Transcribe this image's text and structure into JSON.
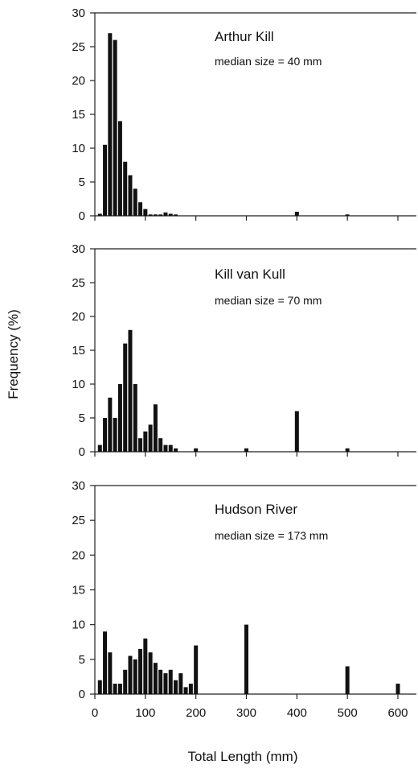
{
  "chart_data": [
    {
      "type": "bar",
      "title": "Arthur Kill",
      "annotation": "median size = 40 mm",
      "ylim": [
        0,
        30
      ],
      "xlim": [
        0,
        625
      ],
      "yticks": [
        0,
        5,
        10,
        15,
        20,
        25,
        30
      ],
      "xticks": [
        0,
        100,
        200,
        300,
        400,
        500,
        600
      ],
      "bars": [
        {
          "x": 10,
          "value": 0.3
        },
        {
          "x": 20,
          "value": 10.5
        },
        {
          "x": 30,
          "value": 27
        },
        {
          "x": 40,
          "value": 26
        },
        {
          "x": 50,
          "value": 14
        },
        {
          "x": 60,
          "value": 8
        },
        {
          "x": 70,
          "value": 6
        },
        {
          "x": 80,
          "value": 4
        },
        {
          "x": 90,
          "value": 2
        },
        {
          "x": 100,
          "value": 1
        },
        {
          "x": 110,
          "value": 0.2
        },
        {
          "x": 120,
          "value": 0.2
        },
        {
          "x": 130,
          "value": 0.2
        },
        {
          "x": 140,
          "value": 0.5
        },
        {
          "x": 150,
          "value": 0.3
        },
        {
          "x": 160,
          "value": 0.2
        },
        {
          "x": 400,
          "value": 0.6
        },
        {
          "x": 500,
          "value": 0.2
        }
      ]
    },
    {
      "type": "bar",
      "title": "Kill van Kull",
      "annotation": "median size = 70 mm",
      "ylim": [
        0,
        30
      ],
      "xlim": [
        0,
        625
      ],
      "yticks": [
        0,
        5,
        10,
        15,
        20,
        25,
        30
      ],
      "xticks": [
        0,
        100,
        200,
        300,
        400,
        500,
        600
      ],
      "bars": [
        {
          "x": 10,
          "value": 1
        },
        {
          "x": 20,
          "value": 5
        },
        {
          "x": 30,
          "value": 8
        },
        {
          "x": 40,
          "value": 5
        },
        {
          "x": 50,
          "value": 10
        },
        {
          "x": 60,
          "value": 16
        },
        {
          "x": 70,
          "value": 18
        },
        {
          "x": 80,
          "value": 10
        },
        {
          "x": 90,
          "value": 2
        },
        {
          "x": 100,
          "value": 3
        },
        {
          "x": 110,
          "value": 4
        },
        {
          "x": 120,
          "value": 7
        },
        {
          "x": 130,
          "value": 2
        },
        {
          "x": 140,
          "value": 1
        },
        {
          "x": 150,
          "value": 1
        },
        {
          "x": 160,
          "value": 0.5
        },
        {
          "x": 200,
          "value": 0.5
        },
        {
          "x": 300,
          "value": 0.5
        },
        {
          "x": 400,
          "value": 6
        },
        {
          "x": 500,
          "value": 0.5
        }
      ]
    },
    {
      "type": "bar",
      "title": "Hudson River",
      "annotation": "median size = 173 mm",
      "ylim": [
        0,
        30
      ],
      "xlim": [
        0,
        625
      ],
      "yticks": [
        0,
        5,
        10,
        15,
        20,
        25,
        30
      ],
      "xticks": [
        0,
        100,
        200,
        300,
        400,
        500,
        600
      ],
      "bars": [
        {
          "x": 10,
          "value": 2
        },
        {
          "x": 20,
          "value": 9
        },
        {
          "x": 30,
          "value": 6
        },
        {
          "x": 40,
          "value": 1.5
        },
        {
          "x": 50,
          "value": 1.5
        },
        {
          "x": 60,
          "value": 3.5
        },
        {
          "x": 70,
          "value": 5.5
        },
        {
          "x": 80,
          "value": 5
        },
        {
          "x": 90,
          "value": 6.5
        },
        {
          "x": 100,
          "value": 8
        },
        {
          "x": 110,
          "value": 6
        },
        {
          "x": 120,
          "value": 4.5
        },
        {
          "x": 130,
          "value": 3.5
        },
        {
          "x": 140,
          "value": 3
        },
        {
          "x": 150,
          "value": 3.5
        },
        {
          "x": 160,
          "value": 2
        },
        {
          "x": 170,
          "value": 3
        },
        {
          "x": 180,
          "value": 1
        },
        {
          "x": 190,
          "value": 1.5
        },
        {
          "x": 200,
          "value": 7
        },
        {
          "x": 300,
          "value": 10
        },
        {
          "x": 500,
          "value": 4
        },
        {
          "x": 600,
          "value": 1.5
        }
      ]
    }
  ],
  "axes": {
    "ylabel": "Frequency (%)",
    "xlabel": "Total Length (mm)"
  }
}
